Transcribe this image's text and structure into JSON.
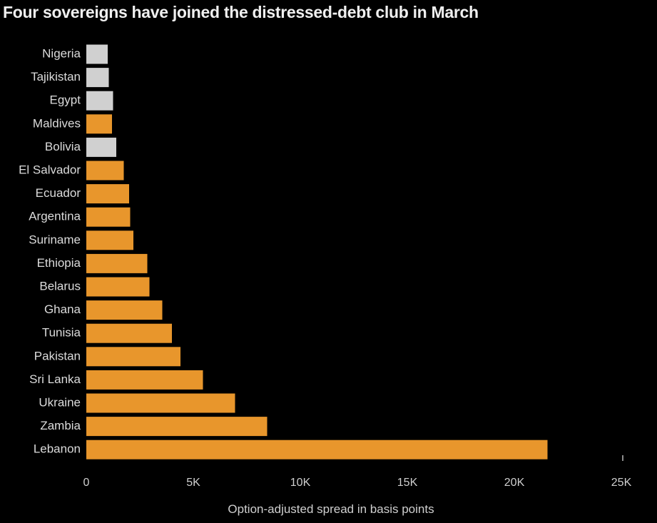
{
  "chart_data": {
    "type": "bar",
    "orientation": "horizontal",
    "title": "Four sovereigns have joined the distressed-debt club in March",
    "xlabel": "Option-adjusted spread in basis points",
    "ylabel": "",
    "xlim": [
      0,
      25000
    ],
    "xticks": [
      0,
      5000,
      10000,
      15000,
      20000,
      25000
    ],
    "xtick_labels": [
      "0",
      "5K",
      "10K",
      "15K",
      "20K",
      "25K"
    ],
    "grid": false,
    "categories": [
      "Nigeria",
      "Tajikistan",
      "Egypt",
      "Maldives",
      "Bolivia",
      "El Salvador",
      "Ecuador",
      "Argentina",
      "Suriname",
      "Ethiopia",
      "Belarus",
      "Ghana",
      "Tunisia",
      "Pakistan",
      "Sri Lanka",
      "Ukraine",
      "Zambia",
      "Lebanon"
    ],
    "values": [
      1000,
      1050,
      1250,
      1200,
      1400,
      1750,
      2000,
      2050,
      2200,
      2850,
      2950,
      3550,
      4000,
      4400,
      5450,
      6950,
      8450,
      21550
    ],
    "distressed": [
      false,
      false,
      false,
      true,
      false,
      true,
      true,
      true,
      true,
      true,
      true,
      true,
      true,
      true,
      true,
      true,
      true,
      true
    ],
    "colors": {
      "distressed": "#e8962c",
      "other": "#d0d0d0"
    }
  }
}
